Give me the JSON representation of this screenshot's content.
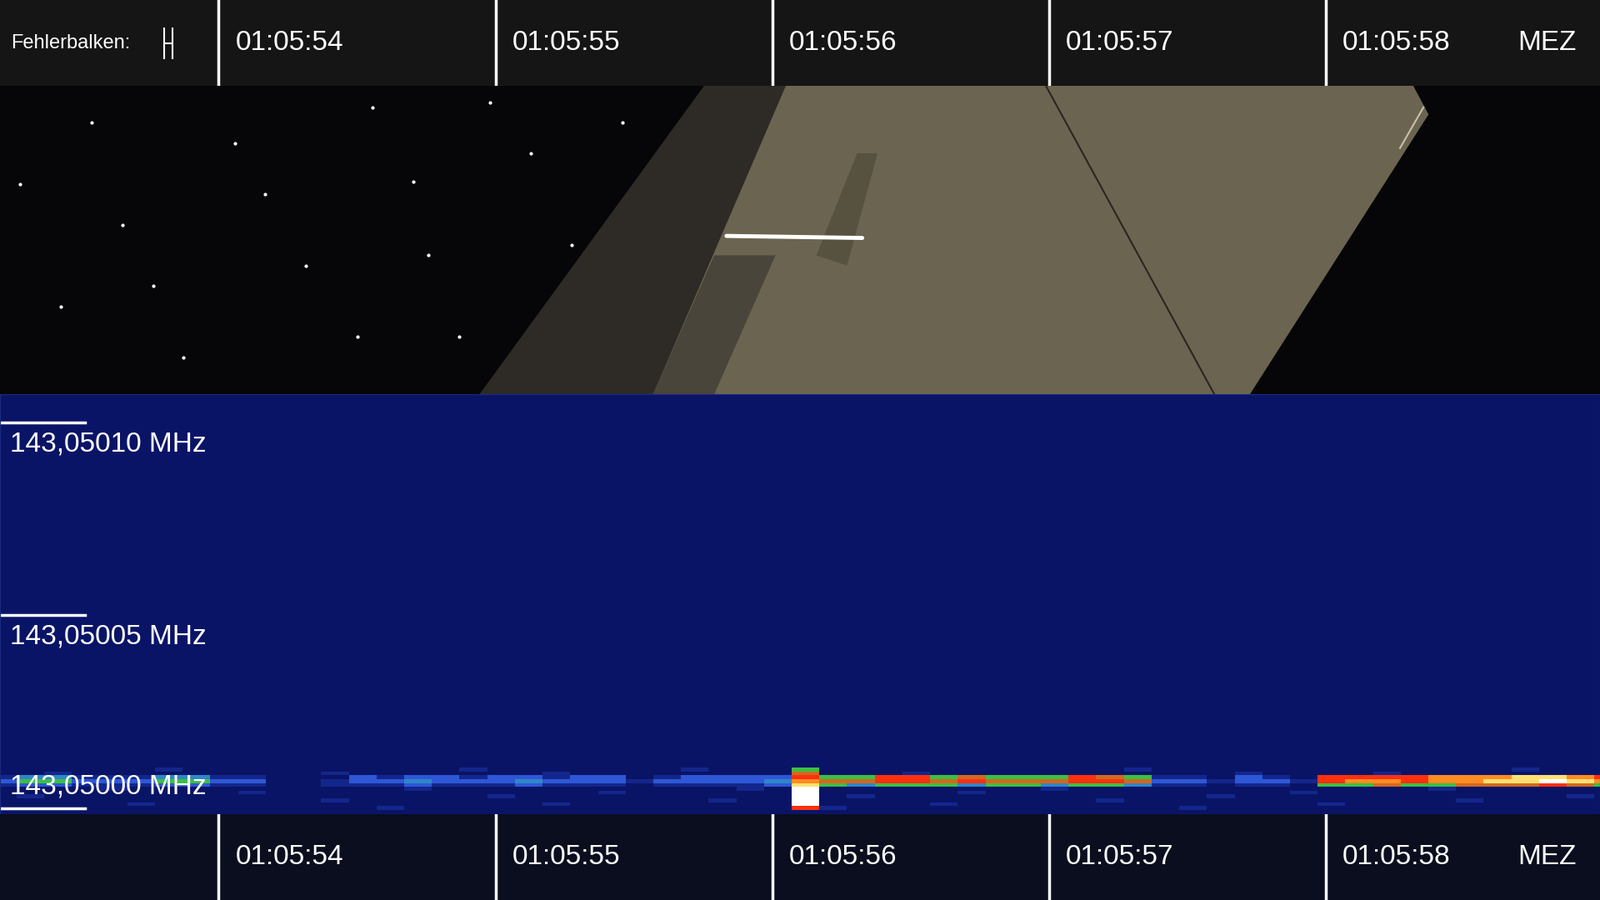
{
  "chart_data": {
    "type": "heatmap",
    "error_bar_label": "Fehlerbalken:",
    "error_bar": 0.03,
    "time_zone_label": "MEZ",
    "xlim": [
      53.21,
      58.99
    ],
    "xticks": [
      {
        "value": 54,
        "label": "01:05:54"
      },
      {
        "value": 55,
        "label": "01:05:55"
      },
      {
        "value": 56,
        "label": "01:05:56"
      },
      {
        "value": 57,
        "label": "01:05:57"
      },
      {
        "value": 58,
        "label": "01:05:58"
      }
    ],
    "ylim": [
      143.0499984,
      143.0501074
    ],
    "yticks": [
      {
        "value": 143.0501,
        "label": "143,05010 MHz"
      },
      {
        "value": 143.05005,
        "label": "143,05005 MHz"
      },
      {
        "value": 143.05,
        "label": "143,05000 MHz"
      }
    ],
    "color_range": [
      0,
      9
    ],
    "x_edges": [
      53.17,
      53.27,
      53.37,
      53.47,
      53.57,
      53.67,
      53.77,
      53.87,
      53.97,
      54.07,
      54.17,
      54.27,
      54.37,
      54.47,
      54.57,
      54.67,
      54.77,
      54.87,
      54.97,
      55.07,
      55.17,
      55.27,
      55.37,
      55.47,
      55.57,
      55.67,
      55.77,
      55.87,
      55.97,
      56.07,
      56.17,
      56.27,
      56.37,
      56.47,
      56.57,
      56.67,
      56.77,
      56.87,
      56.97,
      57.07,
      57.17,
      57.27,
      57.37,
      57.47,
      57.57,
      57.67,
      57.77,
      57.87,
      57.97,
      58.07,
      58.17,
      58.27,
      58.37,
      58.47,
      58.57,
      58.67,
      58.77,
      58.87,
      58.97,
      59.07
    ],
    "y_edges": [
      143.0499995,
      143.0500005,
      143.0500015,
      143.0500025,
      143.0500035,
      143.0500045,
      143.0500055,
      143.0500065,
      143.0500075,
      143.0500085,
      143.0500095,
      143.0500105,
      143.0500115
    ],
    "cells": [
      [
        0,
        0,
        0,
        0,
        0,
        0,
        0,
        0,
        0,
        0,
        0,
        0,
        0,
        0,
        1,
        0,
        0,
        0,
        0,
        0,
        0,
        0,
        0,
        0,
        0,
        0,
        0,
        0,
        0,
        6,
        1,
        0,
        0,
        0,
        0,
        0,
        0,
        0,
        0,
        0,
        0,
        0,
        0,
        1,
        0,
        0,
        0,
        0,
        0,
        0,
        0,
        0,
        0,
        0,
        0,
        0,
        0,
        0,
        0
      ],
      [
        0,
        0,
        0,
        0,
        0,
        1,
        0,
        0,
        0,
        0,
        0,
        0,
        0,
        0,
        0,
        0,
        0,
        0,
        0,
        0,
        1,
        0,
        0,
        0,
        0,
        0,
        0,
        0,
        0,
        9,
        0,
        0,
        0,
        0,
        1,
        0,
        0,
        0,
        0,
        0,
        0,
        0,
        0,
        0,
        0,
        0,
        0,
        0,
        1,
        0,
        0,
        0,
        0,
        0,
        0,
        0,
        0,
        0,
        0
      ],
      [
        0,
        0,
        0,
        0,
        0,
        0,
        0,
        0,
        0,
        0,
        0,
        0,
        1,
        0,
        0,
        0,
        0,
        0,
        0,
        0,
        0,
        0,
        0,
        0,
        0,
        0,
        1,
        0,
        0,
        9,
        0,
        0,
        0,
        0,
        0,
        0,
        0,
        0,
        0,
        0,
        1,
        0,
        0,
        0,
        0,
        0,
        0,
        0,
        0,
        0,
        0,
        0,
        0,
        1,
        0,
        0,
        0,
        0,
        0
      ],
      [
        0,
        1,
        0,
        0,
        0,
        0,
        0,
        0,
        0,
        0,
        0,
        0,
        0,
        0,
        0,
        0,
        0,
        0,
        1,
        0,
        0,
        0,
        0,
        0,
        0,
        0,
        0,
        0,
        0,
        9,
        0,
        1,
        0,
        0,
        0,
        0,
        0,
        0,
        0,
        0,
        0,
        0,
        0,
        0,
        1,
        0,
        0,
        0,
        0,
        0,
        0,
        0,
        0,
        0,
        0,
        0,
        0,
        1,
        0
      ],
      [
        0,
        0,
        0,
        0,
        0,
        0,
        0,
        0,
        0,
        1,
        0,
        0,
        0,
        0,
        0,
        0,
        0,
        0,
        0,
        0,
        0,
        0,
        1,
        0,
        0,
        0,
        0,
        0,
        0,
        9,
        0,
        0,
        0,
        0,
        0,
        1,
        0,
        0,
        0,
        0,
        0,
        0,
        0,
        0,
        0,
        0,
        0,
        1,
        0,
        0,
        0,
        0,
        0,
        0,
        0,
        0,
        0,
        0,
        0
      ],
      [
        0,
        0,
        0,
        0,
        1,
        0,
        0,
        0,
        0,
        0,
        0,
        0,
        0,
        0,
        0,
        1,
        0,
        0,
        0,
        0,
        0,
        0,
        0,
        0,
        0,
        0,
        0,
        1,
        0,
        9,
        0,
        0,
        0,
        0,
        0,
        0,
        0,
        0,
        1,
        0,
        0,
        0,
        0,
        0,
        0,
        0,
        0,
        0,
        0,
        0,
        0,
        0,
        1,
        0,
        0,
        0,
        0,
        0,
        0
      ],
      [
        1,
        2,
        2,
        1,
        1,
        1,
        2,
        2,
        1,
        1,
        0,
        0,
        1,
        1,
        1,
        2,
        1,
        1,
        1,
        2,
        1,
        1,
        1,
        0,
        1,
        1,
        1,
        1,
        2,
        8,
        4,
        3,
        4,
        4,
        4,
        3,
        4,
        4,
        3,
        4,
        4,
        3,
        1,
        1,
        0,
        1,
        1,
        0,
        4,
        4,
        5,
        4,
        4,
        5,
        5,
        5,
        6,
        5,
        4
      ],
      [
        2,
        4,
        4,
        2,
        2,
        2,
        4,
        4,
        2,
        2,
        0,
        0,
        1,
        2,
        2,
        3,
        2,
        2,
        2,
        3,
        2,
        2,
        2,
        1,
        2,
        2,
        2,
        2,
        3,
        7,
        5,
        5,
        6,
        6,
        5,
        6,
        5,
        5,
        5,
        6,
        6,
        5,
        2,
        2,
        1,
        2,
        2,
        1,
        6,
        7,
        7,
        6,
        7,
        7,
        8,
        8,
        9,
        8,
        7
      ],
      [
        1,
        3,
        3,
        1,
        1,
        1,
        3,
        3,
        1,
        1,
        0,
        0,
        0,
        2,
        1,
        2,
        2,
        1,
        2,
        2,
        1,
        2,
        2,
        0,
        1,
        2,
        2,
        2,
        2,
        6,
        4,
        4,
        6,
        6,
        4,
        5,
        4,
        4,
        4,
        6,
        5,
        4,
        1,
        1,
        0,
        2,
        1,
        0,
        6,
        6,
        6,
        6,
        7,
        7,
        7,
        8,
        8,
        7,
        6
      ],
      [
        0,
        0,
        1,
        0,
        0,
        0,
        0,
        0,
        0,
        0,
        0,
        0,
        1,
        0,
        0,
        0,
        0,
        0,
        0,
        0,
        1,
        0,
        0,
        0,
        0,
        0,
        0,
        0,
        0,
        5,
        0,
        0,
        0,
        1,
        0,
        0,
        0,
        0,
        0,
        0,
        0,
        0,
        0,
        0,
        0,
        1,
        0,
        0,
        0,
        0,
        1,
        0,
        0,
        0,
        0,
        0,
        0,
        0,
        0
      ],
      [
        0,
        0,
        0,
        0,
        0,
        0,
        1,
        0,
        0,
        0,
        0,
        0,
        0,
        0,
        0,
        0,
        0,
        1,
        0,
        0,
        0,
        0,
        0,
        0,
        0,
        1,
        0,
        0,
        0,
        4,
        0,
        0,
        0,
        0,
        0,
        0,
        0,
        0,
        0,
        0,
        0,
        1,
        0,
        0,
        0,
        0,
        0,
        0,
        0,
        0,
        0,
        0,
        0,
        0,
        0,
        1,
        0,
        0,
        0
      ],
      [
        0,
        0,
        0,
        0,
        0,
        0,
        0,
        0,
        0,
        0,
        0,
        0,
        0,
        0,
        0,
        0,
        0,
        0,
        0,
        0,
        0,
        0,
        0,
        0,
        0,
        0,
        0,
        0,
        0,
        0,
        0,
        0,
        0,
        0,
        0,
        0,
        0,
        0,
        0,
        0,
        0,
        0,
        0,
        0,
        0,
        0,
        0,
        0,
        0,
        0,
        0,
        0,
        0,
        0,
        0,
        0,
        0,
        0,
        0
      ]
    ]
  }
}
